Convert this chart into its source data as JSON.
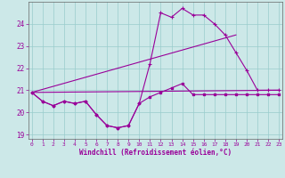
{
  "xlabel": "Windchill (Refroidissement éolien,°C)",
  "bg_color": "#cce8e8",
  "line_color": "#990099",
  "grid_color": "#99cccc",
  "hours": [
    0,
    1,
    2,
    3,
    4,
    5,
    6,
    7,
    8,
    9,
    10,
    11,
    12,
    13,
    14,
    15,
    16,
    17,
    18,
    19,
    20,
    21,
    22,
    23
  ],
  "temp": [
    20.9,
    20.5,
    20.3,
    20.5,
    20.4,
    20.5,
    19.9,
    19.4,
    19.3,
    19.4,
    20.4,
    22.2,
    24.5,
    24.3,
    24.7,
    24.4,
    24.4,
    24.0,
    23.5,
    22.7,
    21.9,
    21.0,
    21.0,
    21.0
  ],
  "windchill": [
    20.9,
    20.5,
    20.3,
    20.5,
    20.4,
    20.5,
    19.9,
    19.4,
    19.3,
    19.4,
    20.4,
    20.7,
    20.9,
    21.1,
    21.3,
    20.8,
    20.8,
    20.8,
    20.8,
    20.8,
    20.8,
    20.8,
    20.8,
    20.8
  ],
  "line1_x": [
    0,
    23
  ],
  "line1_y": [
    20.9,
    21.0
  ],
  "line2_x": [
    0,
    19
  ],
  "line2_y": [
    20.9,
    23.5
  ],
  "ylim": [
    18.8,
    25.0
  ],
  "xlim": [
    0,
    23
  ]
}
